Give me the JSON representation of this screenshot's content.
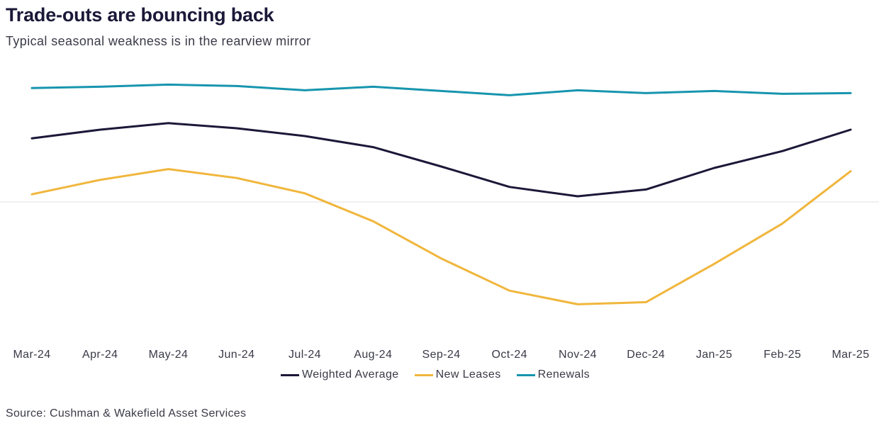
{
  "chart_data": {
    "type": "line",
    "title": "Trade-outs are bouncing back",
    "subtitle": "Typical seasonal weakness is in the rearview mirror",
    "source": "Source: Cushman & Wakefield Asset Services",
    "categories": [
      "Mar-24",
      "Apr-24",
      "May-24",
      "Jun-24",
      "Jul-24",
      "Aug-24",
      "Sep-24",
      "Oct-24",
      "Nov-24",
      "Dec-24",
      "Jan-25",
      "Feb-25",
      "Mar-25"
    ],
    "ylim": [
      -1.0,
      1.0
    ],
    "zero_line": 0,
    "series": [
      {
        "name": "Weighted Average",
        "color": "#1b1838",
        "values": [
          0.449,
          0.51,
          0.556,
          0.52,
          0.465,
          0.387,
          0.25,
          0.106,
          0.04,
          0.088,
          0.24,
          0.359,
          0.51
        ]
      },
      {
        "name": "New Leases",
        "color": "#f0b63c",
        "values": [
          0.054,
          0.156,
          0.232,
          0.169,
          0.061,
          -0.136,
          -0.399,
          -0.626,
          -0.722,
          -0.707,
          -0.437,
          -0.152,
          0.217
        ]
      },
      {
        "name": "Renewals",
        "color": "#1795ae",
        "values": [
          0.804,
          0.813,
          0.828,
          0.818,
          0.788,
          0.813,
          0.783,
          0.753,
          0.788,
          0.768,
          0.783,
          0.763,
          0.768
        ]
      }
    ]
  }
}
